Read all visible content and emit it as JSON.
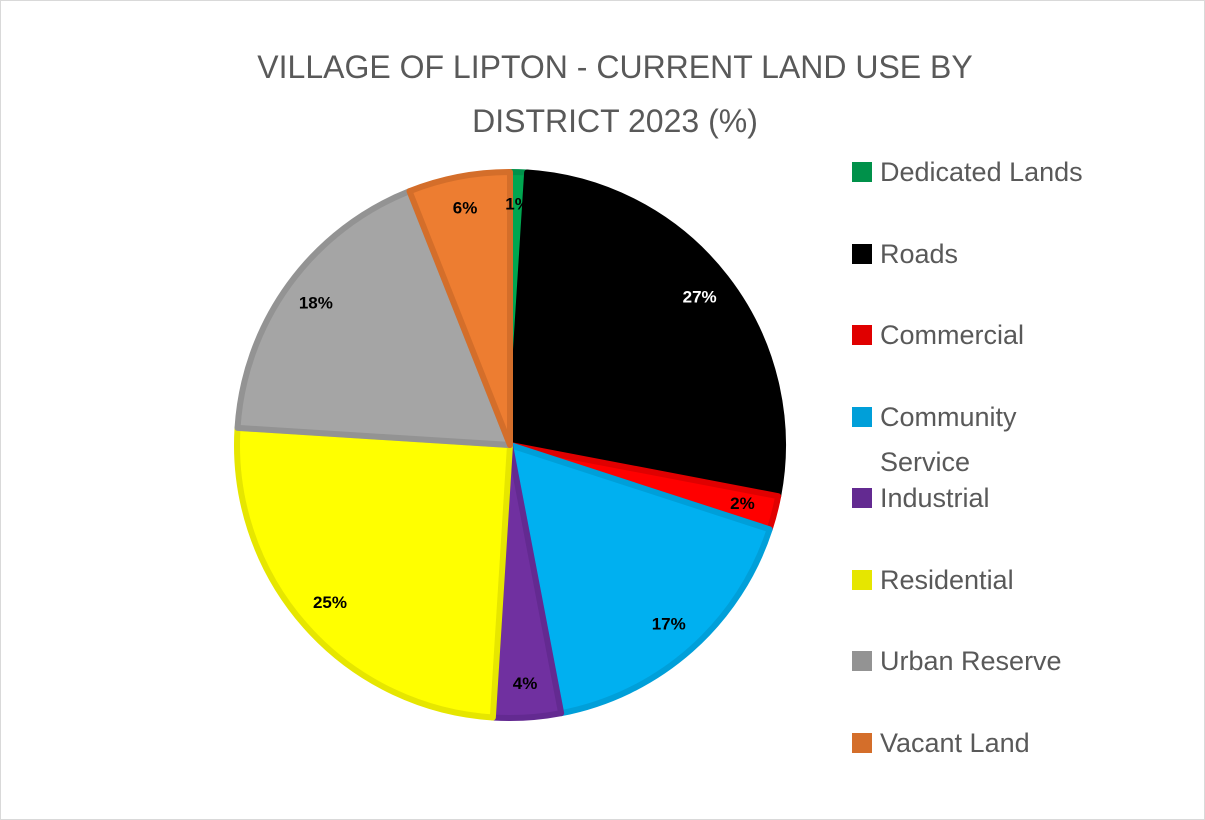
{
  "chart_data": {
    "type": "pie",
    "title": "VILLAGE OF LIPTON - CURRENT LAND USE BY DISTRICT 2023 (%)",
    "categories": [
      "Dedicated Lands",
      "Roads",
      "Commercial",
      "Community Service",
      "Industrial",
      "Residential",
      "Urban Reserve",
      "Vacant Land"
    ],
    "values": [
      1,
      27,
      2,
      17,
      4,
      25,
      18,
      6
    ],
    "value_labels": [
      "1%",
      "27%",
      "2%",
      "17%",
      "4%",
      "25%",
      "18%",
      "6%"
    ],
    "colors": [
      "#00a650",
      "#000000",
      "#ff0000",
      "#00b0f0",
      "#7030a0",
      "#ffff00",
      "#a5a5a5",
      "#ed7d31"
    ],
    "edge_colors": [
      "#00914a",
      "#000000",
      "#e00000",
      "#009fd9",
      "#632a91",
      "#e6e600",
      "#939393",
      "#d46e2a"
    ],
    "legend": "right"
  }
}
